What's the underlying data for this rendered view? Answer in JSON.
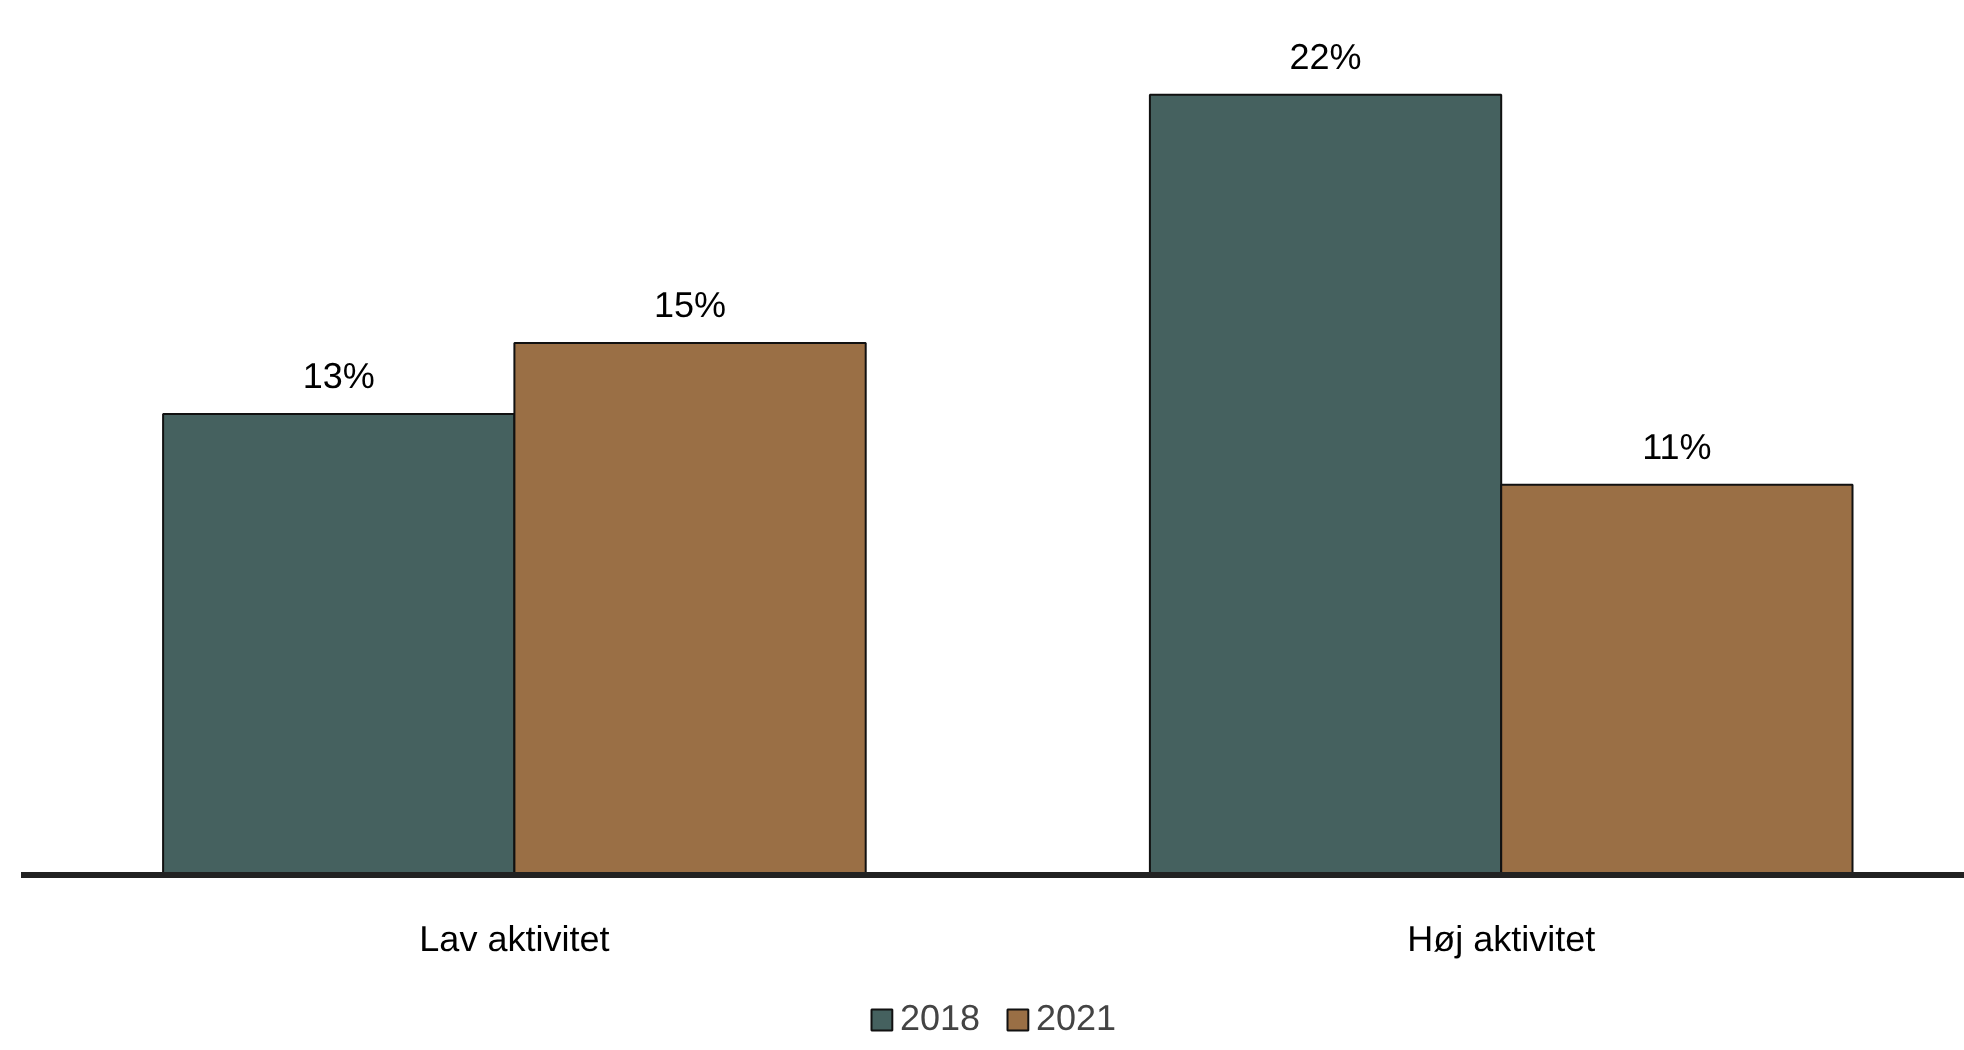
{
  "chart_data": {
    "type": "bar",
    "categories": [
      "Lav aktivitet",
      "Høj aktivitet"
    ],
    "series": [
      {
        "name": "2018",
        "color": "#45615f",
        "values": [
          13,
          22
        ],
        "value_labels": [
          "13%",
          "22%"
        ]
      },
      {
        "name": "2021",
        "color": "#9a6f45",
        "values": [
          15,
          11
        ],
        "value_labels": [
          "15%",
          "11%"
        ]
      }
    ],
    "legend": "bottom"
  }
}
